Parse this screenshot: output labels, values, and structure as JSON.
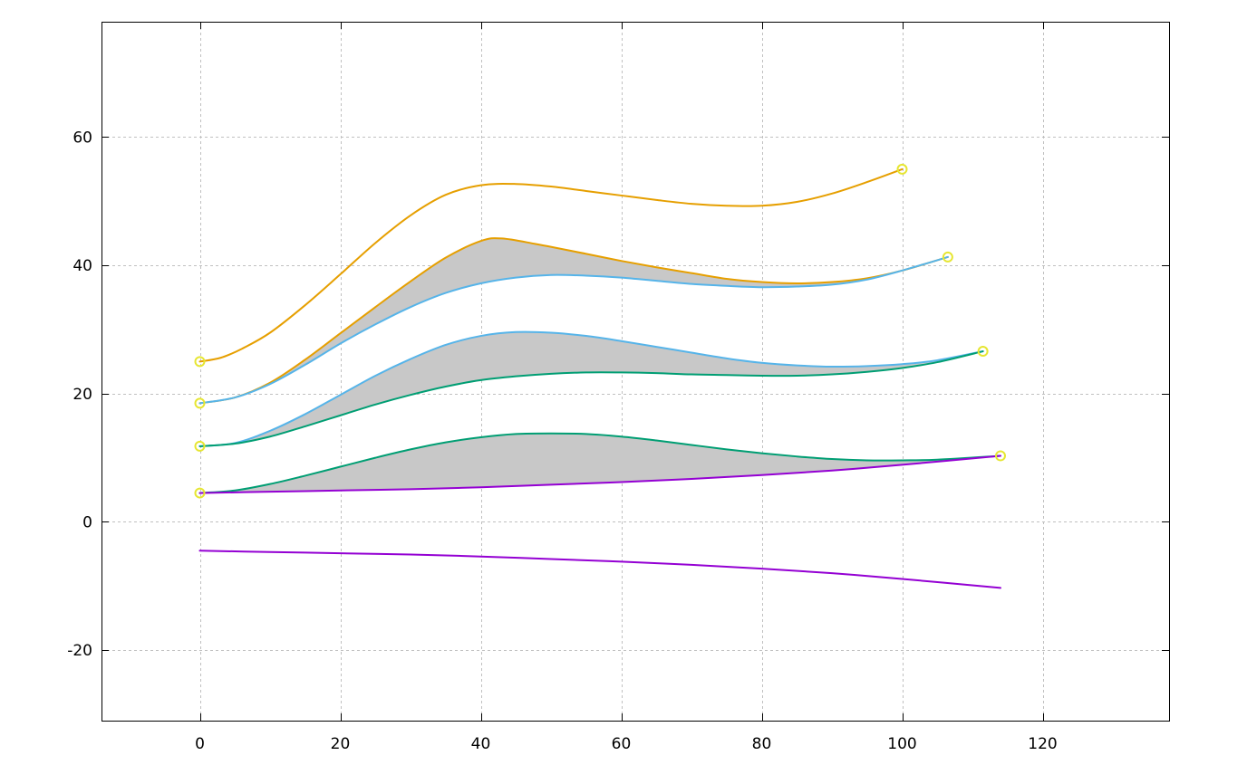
{
  "chart_data": {
    "type": "line",
    "title": "",
    "xlabel": "",
    "ylabel": "",
    "xlim": [
      -14,
      138
    ],
    "ylim": [
      -31,
      78
    ],
    "x_ticks": [
      0,
      20,
      40,
      60,
      80,
      100,
      120
    ],
    "y_ticks": [
      -20,
      0,
      20,
      40,
      60
    ],
    "x_tick_labels": [
      "0",
      "20",
      "40",
      "60",
      "80",
      "100",
      "120"
    ],
    "y_tick_labels": [
      "-20",
      "0",
      "20",
      "40",
      "60"
    ],
    "grid": true,
    "legend": "none",
    "colors": {
      "orange": "#e69f00",
      "blue": "#56b4e9",
      "green": "#009e73",
      "purple": "#9400d3",
      "fill": "#c8c8c8",
      "marker": "#e6e632",
      "grid": "#c0c0c0"
    },
    "series": [
      {
        "color": "orange",
        "x": [
          0,
          3,
          6,
          10,
          15,
          20,
          25,
          30,
          35,
          40,
          45,
          50,
          55,
          60,
          65,
          70,
          75,
          80,
          85,
          90,
          95,
          100
        ],
        "y": [
          25.0,
          25.6,
          27.0,
          29.5,
          33.8,
          38.6,
          43.5,
          47.8,
          51.0,
          52.5,
          52.7,
          52.3,
          51.6,
          50.9,
          50.2,
          49.6,
          49.3,
          49.3,
          49.9,
          51.2,
          53.0,
          55.0
        ]
      },
      {
        "color": "orange",
        "x": [
          0,
          5,
          10,
          15,
          20,
          25,
          30,
          35,
          40,
          43,
          48,
          55,
          60,
          65,
          70,
          75,
          80,
          85,
          90,
          95,
          100,
          106.5
        ],
        "y": [
          18.5,
          19.4,
          21.7,
          25.3,
          29.4,
          33.5,
          37.5,
          41.2,
          43.8,
          44.2,
          43.3,
          41.8,
          40.7,
          39.7,
          38.8,
          37.9,
          37.4,
          37.2,
          37.4,
          38.0,
          39.2,
          41.3
        ]
      },
      {
        "color": "blue",
        "x": [
          0,
          5,
          10,
          15,
          20,
          25,
          30,
          35,
          40,
          45,
          50,
          55,
          60,
          65,
          70,
          75,
          80,
          85,
          90,
          95,
          100,
          106.5
        ],
        "y": [
          18.5,
          19.4,
          21.5,
          24.5,
          27.8,
          30.8,
          33.5,
          35.7,
          37.2,
          38.1,
          38.5,
          38.4,
          38.1,
          37.6,
          37.1,
          36.8,
          36.6,
          36.7,
          37.0,
          37.8,
          39.2,
          41.3
        ]
      },
      {
        "color": "blue",
        "x": [
          0,
          5,
          10,
          15,
          20,
          25,
          30,
          35,
          40,
          45,
          50,
          55,
          60,
          65,
          70,
          75,
          80,
          85,
          90,
          95,
          100,
          105,
          111.5
        ],
        "y": [
          11.8,
          12.3,
          14.2,
          16.8,
          19.8,
          22.8,
          25.4,
          27.6,
          29.0,
          29.6,
          29.5,
          29.0,
          28.2,
          27.3,
          26.4,
          25.5,
          24.8,
          24.4,
          24.2,
          24.3,
          24.6,
          25.2,
          26.6
        ]
      },
      {
        "color": "green",
        "x": [
          0,
          5,
          10,
          15,
          20,
          25,
          30,
          35,
          40,
          45,
          50,
          55,
          60,
          65,
          70,
          75,
          80,
          85,
          90,
          95,
          100,
          105,
          111.5
        ],
        "y": [
          11.8,
          12.2,
          13.3,
          14.9,
          16.6,
          18.3,
          19.8,
          21.1,
          22.1,
          22.7,
          23.1,
          23.3,
          23.3,
          23.2,
          23.0,
          22.9,
          22.8,
          22.8,
          23.0,
          23.4,
          24.0,
          24.9,
          26.6
        ]
      },
      {
        "color": "green",
        "x": [
          0,
          5,
          10,
          15,
          20,
          25,
          30,
          35,
          40,
          45,
          50,
          55,
          60,
          65,
          70,
          75,
          80,
          85,
          90,
          95,
          100,
          105,
          114
        ],
        "y": [
          4.5,
          4.9,
          5.9,
          7.2,
          8.6,
          10.0,
          11.3,
          12.4,
          13.2,
          13.7,
          13.8,
          13.7,
          13.3,
          12.7,
          12.0,
          11.3,
          10.7,
          10.2,
          9.8,
          9.6,
          9.6,
          9.7,
          10.3
        ]
      },
      {
        "color": "purple",
        "x": [
          0,
          10,
          20,
          30,
          40,
          50,
          60,
          70,
          80,
          90,
          100,
          114
        ],
        "y": [
          4.5,
          4.7,
          4.9,
          5.1,
          5.4,
          5.8,
          6.2,
          6.7,
          7.3,
          8.0,
          8.9,
          10.3
        ]
      },
      {
        "color": "purple",
        "x": [
          0,
          10,
          20,
          30,
          40,
          50,
          60,
          70,
          80,
          90,
          100,
          114
        ],
        "y": [
          -4.5,
          -4.7,
          -4.9,
          -5.1,
          -5.4,
          -5.8,
          -6.2,
          -6.7,
          -7.3,
          -8.0,
          -8.9,
          -10.3
        ]
      }
    ],
    "fills": [
      {
        "between": [
          1,
          2
        ]
      },
      {
        "between": [
          3,
          4
        ]
      },
      {
        "between": [
          5,
          6
        ]
      }
    ],
    "markers": [
      {
        "x": 0,
        "y": 25.0
      },
      {
        "x": 0,
        "y": 18.5
      },
      {
        "x": 0,
        "y": 11.8
      },
      {
        "x": 0,
        "y": 4.5
      },
      {
        "x": 100,
        "y": 55.0
      },
      {
        "x": 106.5,
        "y": 41.3
      },
      {
        "x": 111.5,
        "y": 26.6
      },
      {
        "x": 114,
        "y": 10.3
      }
    ]
  }
}
